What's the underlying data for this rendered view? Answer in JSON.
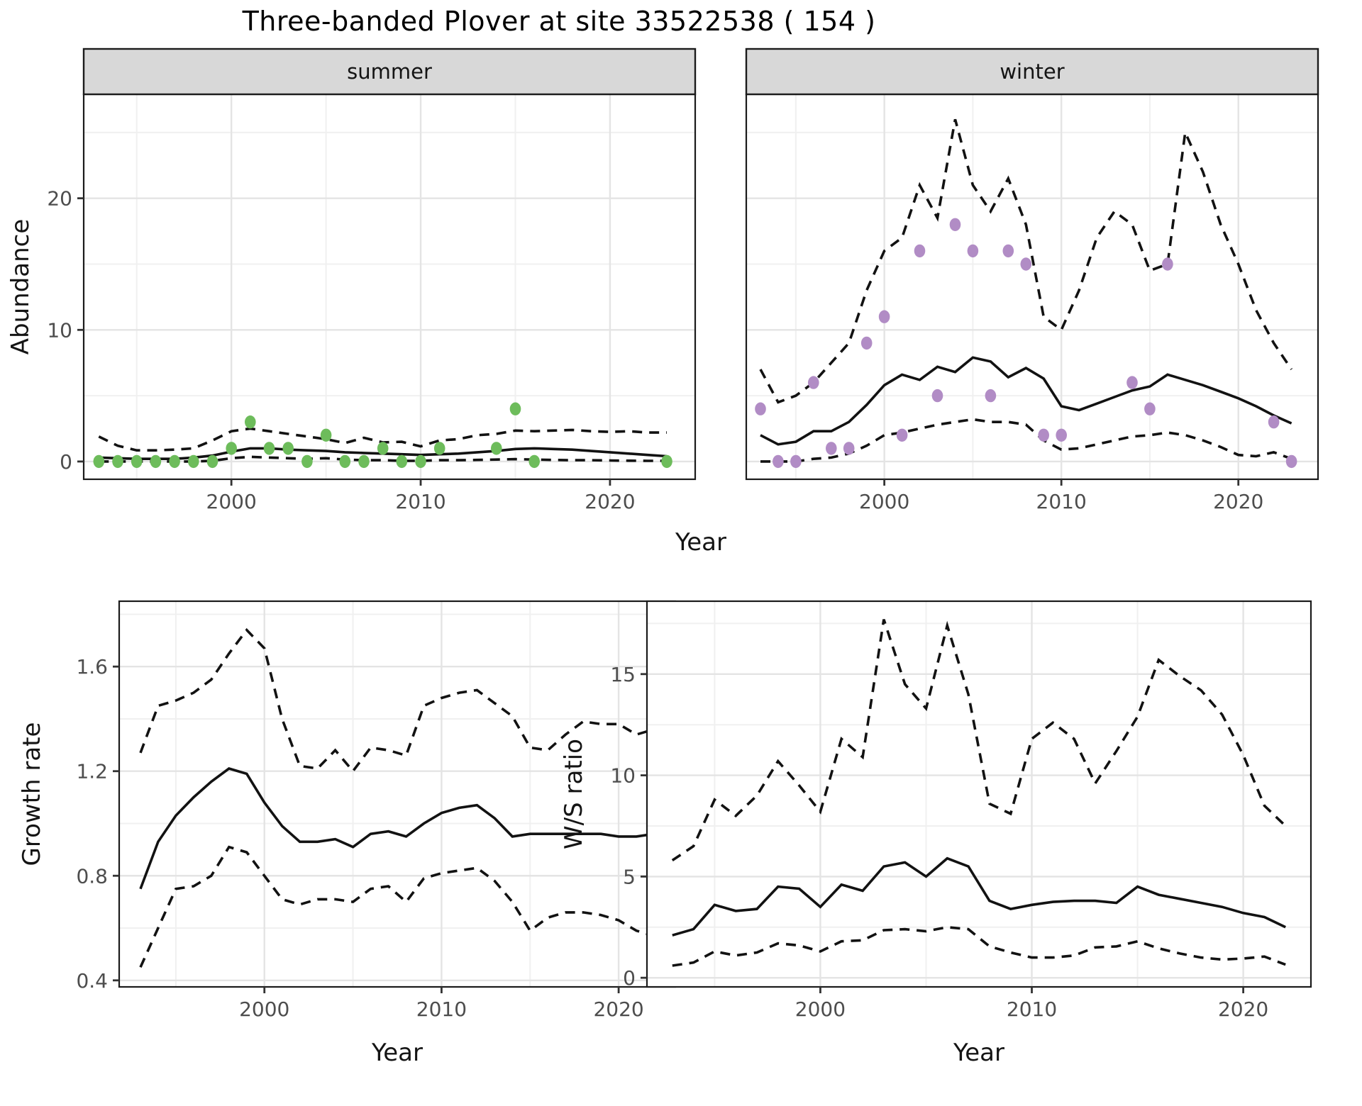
{
  "title": "Three-banded Plover at site 33522538 ( 154 )",
  "colors": {
    "summer_points": "#6dbc5b",
    "winter_points": "#b18cc5",
    "line": "#121212",
    "grid_major": "#e4e4e4",
    "grid_minor": "#f0f0f0",
    "panel_border": "#1b1b1b",
    "strip_fill": "#d8d8d8",
    "strip_border": "#1b1b1b",
    "tick_label": "#4d4d4d",
    "axis_title": "#141414",
    "background": "#ffffff"
  },
  "chart_data": [
    {
      "id": "abundance-summer",
      "type": "line",
      "facet_label": "summer",
      "xlabel": "Year",
      "ylabel": "Abundance",
      "xlim": [
        1992.2,
        2024.5
      ],
      "ylim": [
        -1.35,
        27.9
      ],
      "xticks": {
        "values": [
          2000,
          2010,
          2020
        ],
        "labels": [
          "2000",
          "2010",
          "2020"
        ]
      },
      "xminor": [
        1995,
        2005,
        2015
      ],
      "yticks": {
        "values": [
          0,
          10,
          20
        ],
        "labels": [
          "0",
          "10",
          "20"
        ]
      },
      "yminor": [
        5,
        15,
        25
      ],
      "series": {
        "start_year": 1993,
        "median": [
          0.3,
          0.25,
          0.2,
          0.2,
          0.2,
          0.3,
          0.45,
          0.75,
          1.0,
          1.0,
          0.9,
          0.85,
          0.8,
          0.7,
          0.65,
          0.6,
          0.55,
          0.5,
          0.55,
          0.6,
          0.7,
          0.8,
          0.95,
          1.0,
          0.95,
          0.9,
          0.8,
          0.7,
          0.6,
          0.5,
          0.4
        ],
        "upper95": [
          1.9,
          1.2,
          0.85,
          0.85,
          0.9,
          1.0,
          1.6,
          2.3,
          2.5,
          2.3,
          2.1,
          1.9,
          1.7,
          1.4,
          1.8,
          1.45,
          1.5,
          1.15,
          1.6,
          1.7,
          2.0,
          2.1,
          2.35,
          2.3,
          2.35,
          2.4,
          2.3,
          2.25,
          2.3,
          2.2,
          2.2
        ],
        "lower95": [
          0,
          0,
          0,
          0,
          0,
          0,
          0.05,
          0.25,
          0.35,
          0.3,
          0.25,
          0.2,
          0.25,
          0.15,
          0.1,
          0.1,
          0.05,
          0.05,
          0.1,
          0.1,
          0.12,
          0.15,
          0.18,
          0.15,
          0.12,
          0.1,
          0.1,
          0.08,
          0.06,
          0.05,
          0.05
        ]
      },
      "points": {
        "x": [
          1993,
          1994,
          1995,
          1996,
          1997,
          1998,
          1999,
          2000,
          2001,
          2002,
          2003,
          2004,
          2005,
          2006,
          2007,
          2008,
          2009,
          2010,
          2011,
          2014,
          2015,
          2016,
          2023
        ],
        "y": [
          0,
          0,
          0,
          0,
          0,
          0,
          0,
          1,
          3,
          1,
          1,
          0,
          2,
          0,
          0,
          1,
          0,
          0,
          1,
          1,
          4,
          0,
          0
        ],
        "color": "#6dbc5b"
      }
    },
    {
      "id": "abundance-winter",
      "type": "line",
      "facet_label": "winter",
      "xlabel": "Year",
      "ylabel": "Abundance",
      "xlim": [
        1992.2,
        2024.5
      ],
      "ylim": [
        -1.35,
        27.9
      ],
      "xticks": {
        "values": [
          2000,
          2010,
          2020
        ],
        "labels": [
          "2000",
          "2010",
          "2020"
        ]
      },
      "xminor": [
        1995,
        2005,
        2015
      ],
      "yticks": {
        "values": [
          0,
          10,
          20
        ],
        "labels": [
          "0",
          "10",
          "20"
        ]
      },
      "yminor": [
        5,
        15,
        25
      ],
      "series": {
        "start_year": 1993,
        "median": [
          2.0,
          1.3,
          1.5,
          2.3,
          2.3,
          3.0,
          4.3,
          5.8,
          6.6,
          6.2,
          7.2,
          6.8,
          7.9,
          7.6,
          6.4,
          7.1,
          6.3,
          4.2,
          3.9,
          4.4,
          4.9,
          5.4,
          5.7,
          6.6,
          6.2,
          5.8,
          5.3,
          4.8,
          4.2,
          3.5,
          2.9
        ],
        "upper95": [
          7.0,
          4.5,
          5.0,
          6.0,
          7.5,
          9.0,
          13.0,
          16.0,
          17.0,
          21.0,
          18.5,
          26.0,
          21.0,
          19.0,
          21.5,
          18.0,
          11.0,
          10.0,
          13.0,
          17.0,
          19.0,
          18.0,
          14.5,
          15.0,
          25.0,
          22.0,
          18.0,
          15.0,
          11.5,
          9.0,
          7.0
        ],
        "lower95": [
          0,
          0,
          0,
          0.2,
          0.3,
          0.6,
          1.2,
          2.0,
          2.2,
          2.5,
          2.8,
          3.0,
          3.2,
          3.0,
          3.0,
          2.8,
          1.6,
          0.9,
          1.0,
          1.3,
          1.6,
          1.9,
          2.0,
          2.2,
          2.0,
          1.6,
          1.1,
          0.5,
          0.4,
          0.7,
          0.2
        ]
      },
      "points": {
        "x": [
          1993,
          1994,
          1995,
          1996,
          1997,
          1998,
          1999,
          2000,
          2001,
          2002,
          2003,
          2004,
          2005,
          2006,
          2007,
          2008,
          2009,
          2010,
          2014,
          2015,
          2016,
          2022,
          2023
        ],
        "y": [
          4,
          0,
          0,
          6,
          1,
          1,
          9,
          11,
          2,
          16,
          5,
          18,
          16,
          5,
          16,
          15,
          2,
          2,
          6,
          4,
          15,
          3,
          0
        ],
        "color": "#b18cc5"
      }
    },
    {
      "id": "growth-rate",
      "type": "line",
      "facet_label": "",
      "xlabel": "Year",
      "ylabel": "Growth rate",
      "xlim": [
        1991.8,
        2023.2
      ],
      "ylim": [
        0.375,
        1.85
      ],
      "xticks": {
        "values": [
          2000,
          2010,
          2020
        ],
        "labels": [
          "2000",
          "2010",
          "2020"
        ]
      },
      "xminor": [
        1995,
        2005,
        2015
      ],
      "yticks": {
        "values": [
          0.4,
          0.8,
          1.2,
          1.6
        ],
        "labels": [
          "0.4",
          "0.8",
          "1.2",
          "1.6"
        ]
      },
      "yminor": [
        0.6,
        1.0,
        1.4,
        1.8
      ],
      "series": {
        "start_year": 1993,
        "median": [
          0.75,
          0.93,
          1.03,
          1.1,
          1.16,
          1.21,
          1.19,
          1.08,
          0.99,
          0.93,
          0.93,
          0.94,
          0.91,
          0.96,
          0.97,
          0.95,
          1.0,
          1.04,
          1.06,
          1.07,
          1.02,
          0.95,
          0.96,
          0.96,
          0.96,
          0.96,
          0.96,
          0.95,
          0.95,
          0.96
        ],
        "upper95": [
          1.27,
          1.45,
          1.47,
          1.5,
          1.55,
          1.65,
          1.74,
          1.67,
          1.4,
          1.22,
          1.21,
          1.28,
          1.2,
          1.29,
          1.28,
          1.26,
          1.45,
          1.48,
          1.5,
          1.51,
          1.46,
          1.41,
          1.29,
          1.28,
          1.34,
          1.39,
          1.38,
          1.38,
          1.34,
          1.36
        ],
        "lower95": [
          0.45,
          0.6,
          0.75,
          0.76,
          0.8,
          0.91,
          0.89,
          0.8,
          0.71,
          0.69,
          0.71,
          0.71,
          0.7,
          0.75,
          0.76,
          0.7,
          0.79,
          0.81,
          0.82,
          0.83,
          0.78,
          0.7,
          0.59,
          0.64,
          0.66,
          0.66,
          0.65,
          0.63,
          0.59,
          0.57
        ]
      },
      "points": null
    },
    {
      "id": "ws-ratio",
      "type": "line",
      "facet_label": "",
      "xlabel": "Year",
      "ylabel": "W/S ratio",
      "xlim": [
        1991.8,
        2023.2
      ],
      "ylim": [
        -0.45,
        18.6
      ],
      "xticks": {
        "values": [
          2000,
          2010,
          2020
        ],
        "labels": [
          "2000",
          "2010",
          "2020"
        ]
      },
      "xminor": [
        1995,
        2005,
        2015
      ],
      "yticks": {
        "values": [
          0,
          5,
          10,
          15
        ],
        "labels": [
          "0",
          "5",
          "10",
          "15"
        ]
      },
      "yminor": [
        2.5,
        7.5,
        12.5,
        17.5
      ],
      "series": {
        "start_year": 1993,
        "median": [
          2.1,
          2.4,
          3.6,
          3.3,
          3.4,
          4.5,
          4.4,
          3.5,
          4.6,
          4.3,
          5.5,
          5.7,
          5.0,
          5.9,
          5.5,
          3.8,
          3.4,
          3.6,
          3.75,
          3.8,
          3.8,
          3.7,
          4.5,
          4.1,
          3.9,
          3.7,
          3.5,
          3.2,
          3.0,
          2.5
        ],
        "upper95": [
          5.8,
          6.5,
          8.8,
          8.0,
          9.0,
          10.7,
          9.5,
          8.2,
          11.8,
          10.9,
          17.7,
          14.5,
          13.3,
          17.4,
          14.0,
          8.6,
          8.1,
          11.8,
          12.6,
          11.8,
          9.6,
          11.2,
          12.9,
          15.7,
          14.9,
          14.2,
          13.0,
          11.0,
          8.5,
          7.5
        ],
        "lower95": [
          0.6,
          0.75,
          1.3,
          1.1,
          1.25,
          1.7,
          1.6,
          1.3,
          1.8,
          1.85,
          2.35,
          2.4,
          2.3,
          2.5,
          2.4,
          1.55,
          1.25,
          1.0,
          1.0,
          1.1,
          1.5,
          1.55,
          1.8,
          1.45,
          1.2,
          1.0,
          0.9,
          0.95,
          1.05,
          0.65
        ]
      },
      "points": null
    }
  ]
}
